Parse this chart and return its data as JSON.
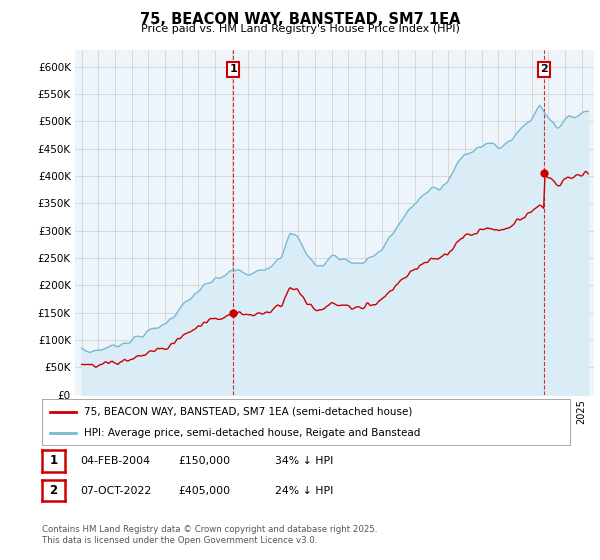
{
  "title": "75, BEACON WAY, BANSTEAD, SM7 1EA",
  "subtitle": "Price paid vs. HM Land Registry's House Price Index (HPI)",
  "legend_property": "75, BEACON WAY, BANSTEAD, SM7 1EA (semi-detached house)",
  "legend_hpi": "HPI: Average price, semi-detached house, Reigate and Banstead",
  "annotation1_date": "04-FEB-2004",
  "annotation1_price": "£150,000",
  "annotation1_hpi": "34% ↓ HPI",
  "annotation2_date": "07-OCT-2022",
  "annotation2_price": "£405,000",
  "annotation2_hpi": "24% ↓ HPI",
  "footer": "Contains HM Land Registry data © Crown copyright and database right 2025.\nThis data is licensed under the Open Government Licence v3.0.",
  "property_color": "#cc0000",
  "hpi_color": "#7ab8d4",
  "hpi_fill_color": "#daedf7",
  "background_color": "#ffffff",
  "plot_bg_color": "#eef5fa",
  "ylim": [
    0,
    630000
  ],
  "yticks": [
    0,
    50000,
    100000,
    150000,
    200000,
    250000,
    300000,
    350000,
    400000,
    450000,
    500000,
    550000,
    600000
  ],
  "purchase1_year": 2004.09,
  "purchase1_price": 150000,
  "purchase2_year": 2022.77,
  "purchase2_price": 405000
}
